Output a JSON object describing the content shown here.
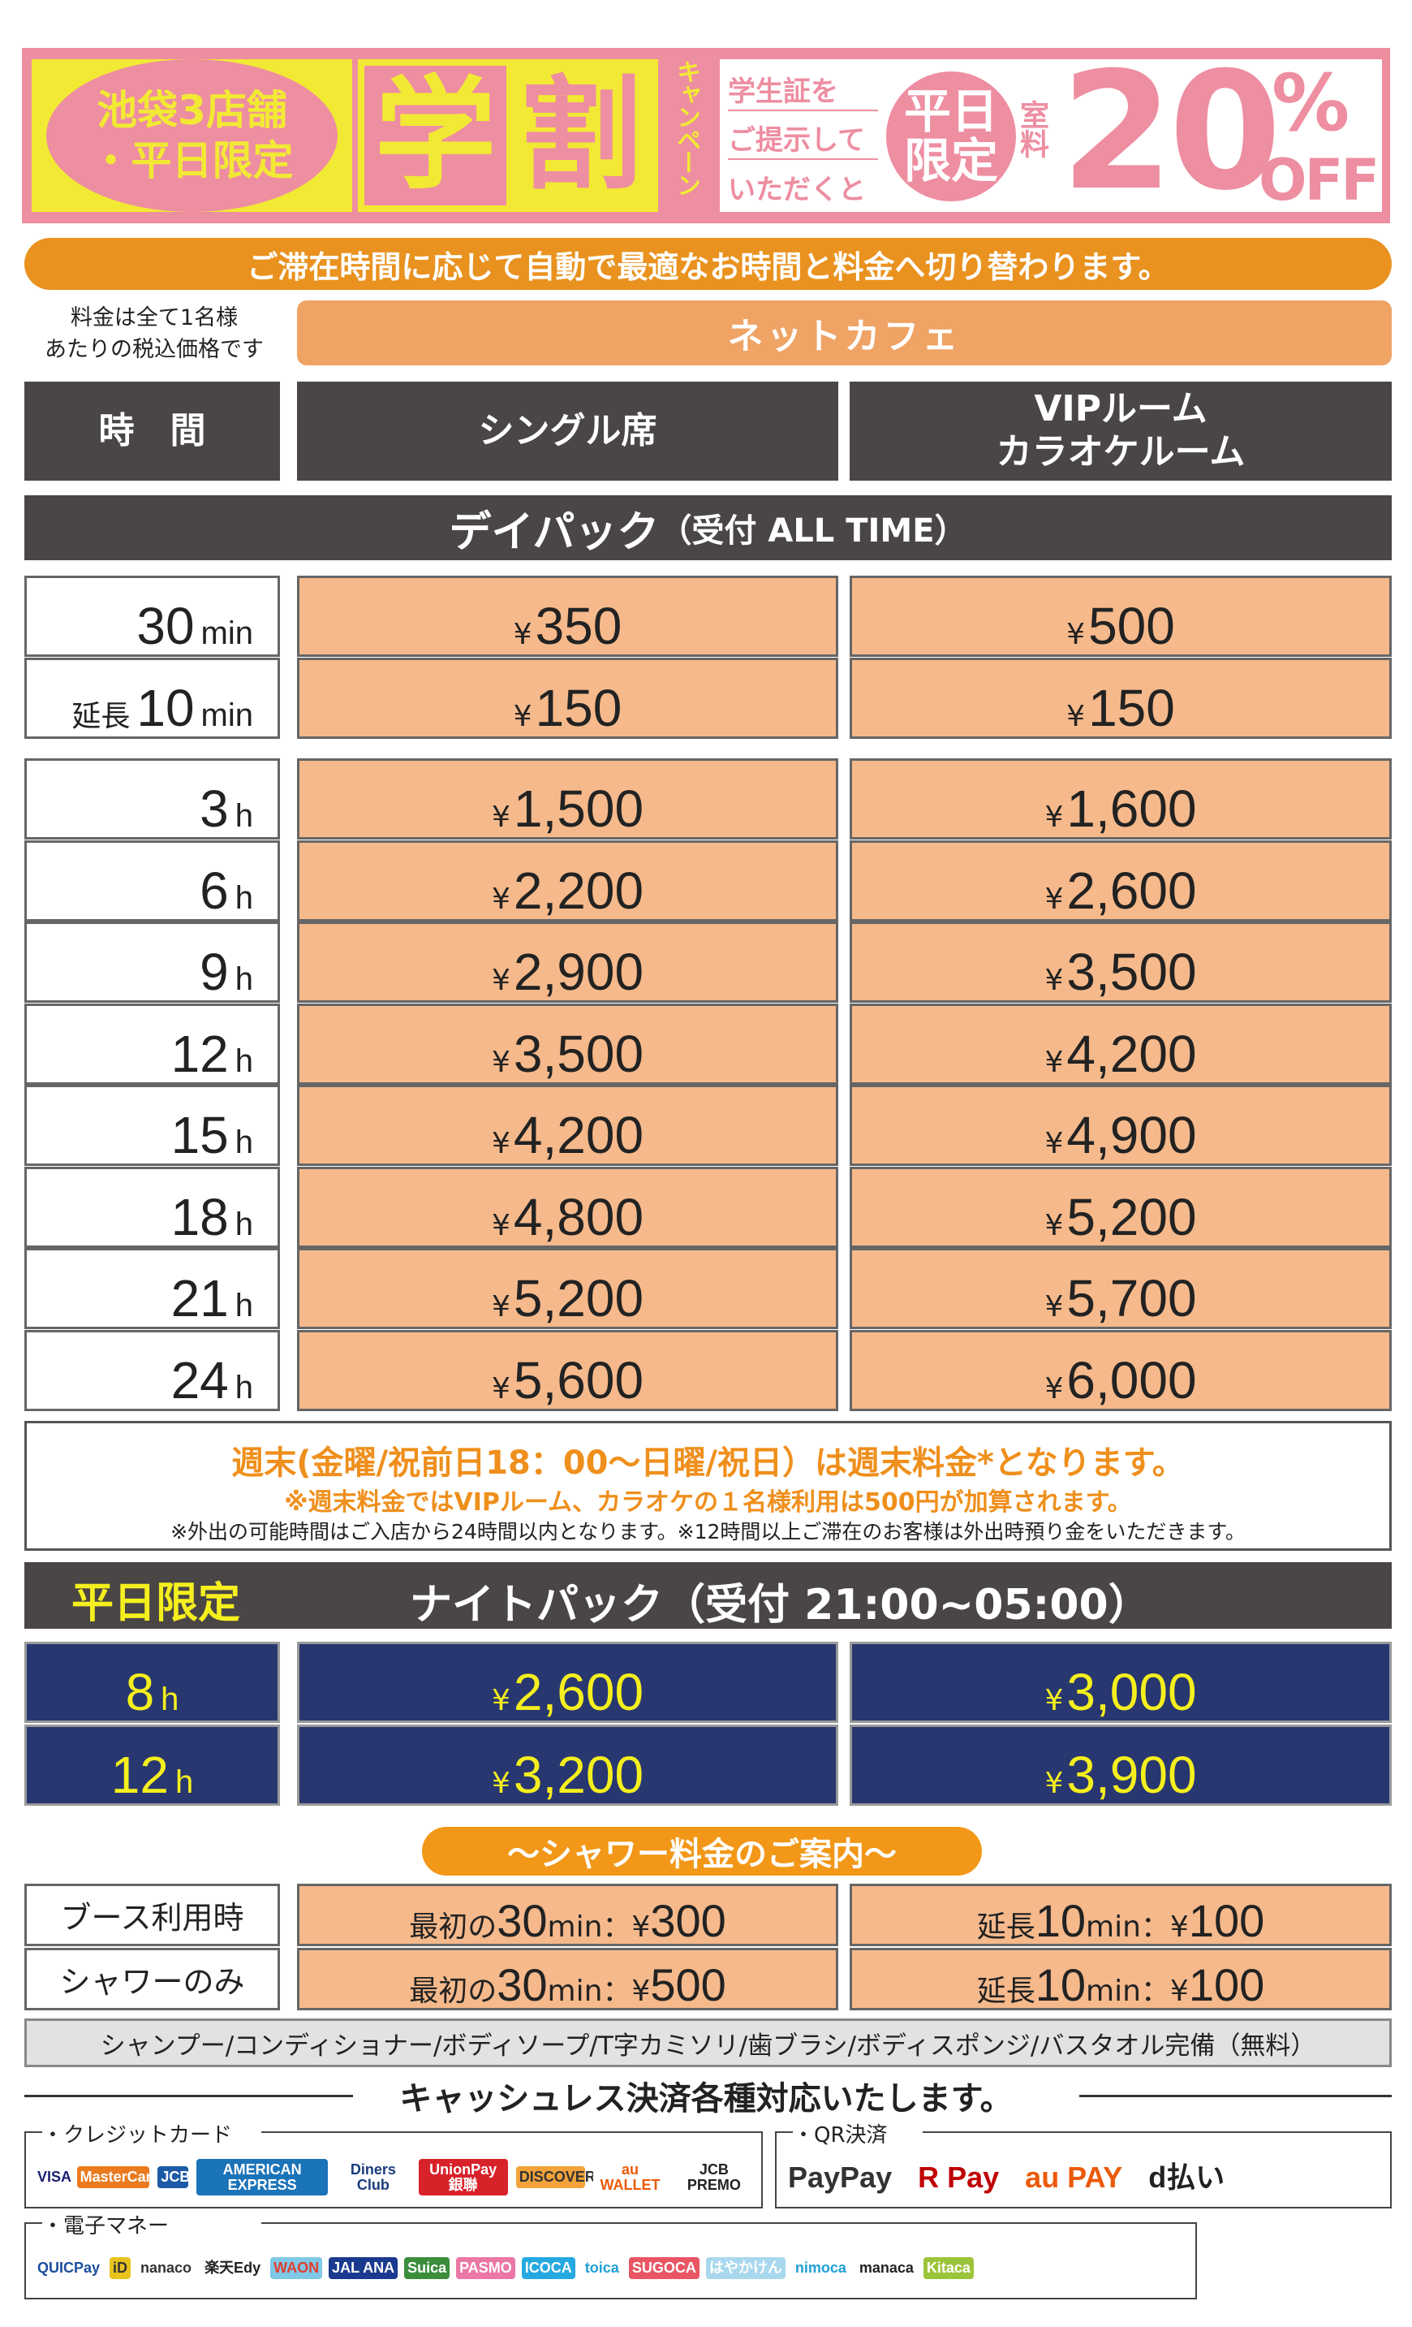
{
  "banner": {
    "stores_line1": "池袋3店舗",
    "stores_line2": "・平日限定",
    "gaku": "学",
    "wari": "割",
    "campaign": "キャンペーン",
    "condition": [
      "学生証を",
      "ご提示して",
      "いただくと"
    ],
    "circle_line1": "平日",
    "circle_line2": "限定",
    "room_fee": "室料",
    "discount": "20",
    "percent": "%",
    "off": "OFF",
    "colors": {
      "pink": "#ee8ea1",
      "yellow": "#f2e934"
    }
  },
  "auto_switch_notice": "ご滞在時間に応じて自動で最適なお時間と料金へ切り替わります。",
  "tax_note": [
    "料金は全て1名様",
    "あたりの税込価格です"
  ],
  "category": "ネットカフェ",
  "headers": {
    "time": "時　間",
    "single": "シングル席",
    "vip_line1": "VIPルーム",
    "vip_line2": "カラオケルーム"
  },
  "day_pack": {
    "title": "デイパック",
    "reception": "（受付 ALL TIME）"
  },
  "currency": "¥",
  "short_rows": [
    {
      "prefix": "",
      "num": "30",
      "unit": "min",
      "single": "350",
      "vip": "500"
    },
    {
      "prefix": "延長",
      "num": "10",
      "unit": "min",
      "single": "150",
      "vip": "150"
    }
  ],
  "hour_rows": [
    {
      "num": "3",
      "unit": "h",
      "single": "1,500",
      "vip": "1,600"
    },
    {
      "num": "6",
      "unit": "h",
      "single": "2,200",
      "vip": "2,600"
    },
    {
      "num": "9",
      "unit": "h",
      "single": "2,900",
      "vip": "3,500"
    },
    {
      "num": "12",
      "unit": "h",
      "single": "3,500",
      "vip": "4,200"
    },
    {
      "num": "15",
      "unit": "h",
      "single": "4,200",
      "vip": "4,900"
    },
    {
      "num": "18",
      "unit": "h",
      "single": "4,800",
      "vip": "5,200"
    },
    {
      "num": "21",
      "unit": "h",
      "single": "5,200",
      "vip": "5,700"
    },
    {
      "num": "24",
      "unit": "h",
      "single": "5,600",
      "vip": "6,000"
    }
  ],
  "notes": {
    "weekend": "週末(金曜/祝前日18：00〜日曜/祝日）は週末料金*となります。",
    "weekend_vip": "※週末料金ではVIPルーム、カラオケの１名様利用は500円が加算されます。",
    "outing": "※外出の可能時間はご入店から24時間以内となります。※12時間以上ご滞在のお客様は外出時預り金をいただきます。"
  },
  "night_pack": {
    "limited": "平日限定",
    "title": "ナイトパック（受付 21:00~05:00）",
    "rows": [
      {
        "num": "8",
        "unit": "h",
        "single": "2,600",
        "vip": "3,000"
      },
      {
        "num": "12",
        "unit": "h",
        "single": "3,200",
        "vip": "3,900"
      }
    ]
  },
  "shower": {
    "title": "〜シャワー料金のご案内〜",
    "rows": [
      {
        "label": "ブース利用時",
        "first_prefix": "最初の",
        "first_num": "30",
        "first_unit": "min：¥",
        "first_price": "300",
        "ext_prefix": "延長",
        "ext_num": "10",
        "ext_unit": "min：¥",
        "ext_price": "100"
      },
      {
        "label": "シャワーのみ",
        "first_prefix": "最初の",
        "first_num": "30",
        "first_unit": "min：¥",
        "first_price": "500",
        "ext_prefix": "延長",
        "ext_num": "10",
        "ext_unit": "min：¥",
        "ext_price": "100"
      }
    ]
  },
  "amenities": "シャンプー/コンディショナー/ボディソープ/T字カミソリ/歯ブラシ/ボディスポンジ/バスタオル完備（無料）",
  "cashless": {
    "title": "キャッシュレス決済各種対応いたします。",
    "credit": {
      "label": "・クレジットカード",
      "logos": [
        {
          "name": "VISA",
          "color": "#1a1f71",
          "bg": "#fff"
        },
        {
          "name": "MasterCard",
          "color": "#fff",
          "bg": "#eb7a1e"
        },
        {
          "name": "JCB",
          "color": "#fff",
          "bg": "#1c5aa6"
        },
        {
          "name": "AMERICAN EXPRESS",
          "color": "#fff",
          "bg": "#1b73b8"
        },
        {
          "name": "Diners Club",
          "color": "#1a3d7c",
          "bg": "#fff"
        },
        {
          "name": "UnionPay 銀聯",
          "color": "#fff",
          "bg": "#d8222a"
        },
        {
          "name": "DISCOVER",
          "color": "#333",
          "bg": "#f2a33a"
        },
        {
          "name": "au WALLET",
          "color": "#eb5a0a",
          "bg": "#fff"
        },
        {
          "name": "JCB PREMO",
          "color": "#222",
          "bg": "#fff"
        }
      ]
    },
    "qr": {
      "label": "・QR決済",
      "logos": [
        {
          "name": "PayPay",
          "color": "#333",
          "bg": "#fff"
        },
        {
          "name": "R Pay",
          "color": "#bf0000",
          "bg": "#fff"
        },
        {
          "name": "au PAY",
          "color": "#eb5a0a",
          "bg": "#fff"
        },
        {
          "name": "d払い",
          "color": "#222",
          "bg": "#fff"
        }
      ]
    },
    "emoney": {
      "label": "・電子マネー",
      "logos": [
        {
          "name": "QUICPay",
          "color": "#1b4e9b",
          "bg": "#fff"
        },
        {
          "name": "iD",
          "color": "#333",
          "bg": "#e8c31e"
        },
        {
          "name": "nanaco",
          "color": "#333",
          "bg": "#fff"
        },
        {
          "name": "楽天Edy",
          "color": "#222",
          "bg": "#fff"
        },
        {
          "name": "WAON",
          "color": "#e23d2e",
          "bg": "#7fc8e6"
        },
        {
          "name": "JAL ANA",
          "color": "#fff",
          "bg": "#1a3a8f"
        },
        {
          "name": "Suica",
          "color": "#fff",
          "bg": "#3c8d3c"
        },
        {
          "name": "PASMO",
          "color": "#fff",
          "bg": "#ea77a6"
        },
        {
          "name": "ICOCA",
          "color": "#fff",
          "bg": "#26a9e0"
        },
        {
          "name": "toica",
          "color": "#1ea0d6",
          "bg": "#fff"
        },
        {
          "name": "SUGOCA",
          "color": "#fff",
          "bg": "#e85664"
        },
        {
          "name": "はやかけん",
          "color": "#fff",
          "bg": "#a9d8ee"
        },
        {
          "name": "nimoca",
          "color": "#1ea0d6",
          "bg": "#fff"
        },
        {
          "name": "manaca",
          "color": "#222",
          "bg": "#fff"
        },
        {
          "name": "Kitaca",
          "color": "#fff",
          "bg": "#9cc43a"
        }
      ]
    }
  }
}
